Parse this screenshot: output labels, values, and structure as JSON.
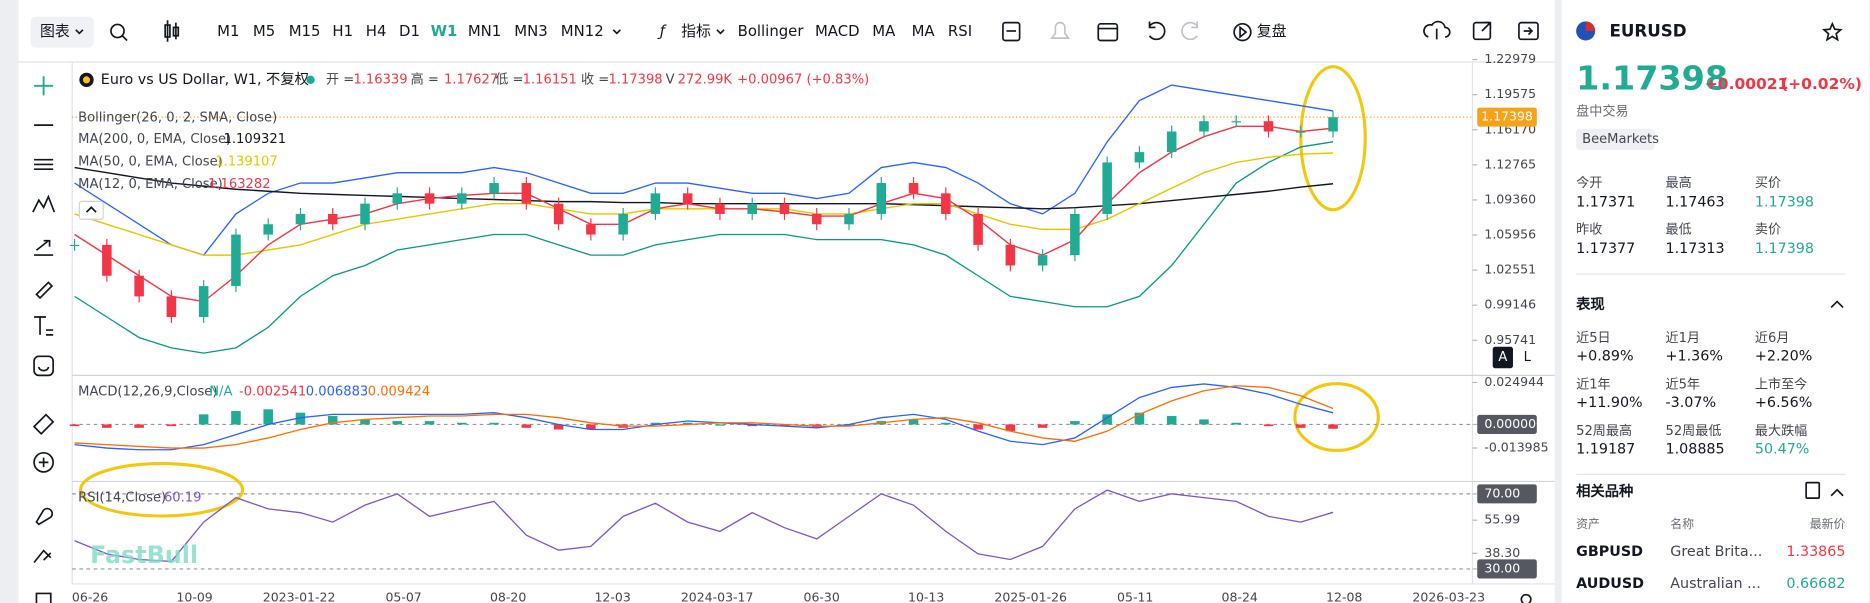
{
  "toolbar": {
    "chart_menu": "图表",
    "timeframes": [
      "M1",
      "M5",
      "M15",
      "H1",
      "H4",
      "D1",
      "W1",
      "MN1",
      "MN3",
      "MN12"
    ],
    "active_timeframe": "W1",
    "indicators_menu": "指标",
    "indicators": [
      "Bollinger",
      "MACD",
      "MA",
      "MA",
      "RSI"
    ],
    "replay": "复盘"
  },
  "legend": {
    "title": "Euro vs US Dollar, W1, 不复权",
    "ohlc": [
      {
        "label": "开 =",
        "value": "1.16339"
      },
      {
        "label": "高 =",
        "value": "1.17627"
      },
      {
        "label": "低 =",
        "value": "1.16151"
      },
      {
        "label": "收 =",
        "value": "1.17398"
      }
    ],
    "volume_label": "V",
    "volume": "272.99K",
    "change": "+0.00967 (+0.83%)"
  },
  "xtick_labels": [
    "06-26",
    "10-09",
    "2023-01-22",
    "05-07",
    "08-20",
    "12-03",
    "2024-03-17",
    "06-30",
    "10-13",
    "2025-01-26",
    "05-11",
    "08-24",
    "12-08",
    "2026-03-23"
  ],
  "scale_buttons": [
    "A",
    "L"
  ],
  "watermark": "FastBull",
  "chart_data": [
    {
      "type": "candlestick",
      "current_price": "1.17398",
      "up_color": "#22ab94",
      "down_color": "#f23645",
      "values": [
        1.05,
        1.02,
        1.0,
        0.98,
        1.01,
        1.06,
        1.07,
        1.08,
        1.07,
        1.09,
        1.1,
        1.09,
        1.1,
        1.11,
        1.09,
        1.07,
        1.06,
        1.08,
        1.1,
        1.09,
        1.08,
        1.09,
        1.08,
        1.07,
        1.08,
        1.11,
        1.1,
        1.08,
        1.05,
        1.03,
        1.04,
        1.08,
        1.13,
        1.14,
        1.16,
        1.17,
        1.17,
        1.16,
        1.16,
        1.17398
      ],
      "bollinger": {
        "name": "Bollinger(26, 0, 2, SMA, Close)",
        "upper_color": "#2962ff",
        "lower_color": "#089981",
        "upper": [
          1.11,
          1.09,
          1.07,
          1.05,
          1.04,
          1.08,
          1.1,
          1.11,
          1.11,
          1.115,
          1.12,
          1.12,
          1.12,
          1.125,
          1.12,
          1.11,
          1.1,
          1.1,
          1.11,
          1.11,
          1.105,
          1.1,
          1.1,
          1.095,
          1.1,
          1.125,
          1.13,
          1.125,
          1.11,
          1.09,
          1.08,
          1.1,
          1.15,
          1.19,
          1.205,
          1.2,
          1.195,
          1.19,
          1.185,
          1.18
        ],
        "lower": [
          1.0,
          0.98,
          0.96,
          0.95,
          0.945,
          0.95,
          0.97,
          1.0,
          1.02,
          1.03,
          1.045,
          1.05,
          1.055,
          1.06,
          1.06,
          1.05,
          1.04,
          1.04,
          1.05,
          1.055,
          1.06,
          1.06,
          1.06,
          1.055,
          1.055,
          1.055,
          1.05,
          1.04,
          1.02,
          1.0,
          0.995,
          0.99,
          0.99,
          1.0,
          1.03,
          1.07,
          1.11,
          1.13,
          1.145,
          1.15
        ]
      },
      "series": [
        {
          "name": "MA(200, 0, EMA, Close)",
          "last": "1.109321",
          "color": "#131722",
          "values": [
            1.125,
            1.12,
            1.115,
            1.11,
            1.107,
            1.104,
            1.102,
            1.1,
            1.099,
            1.098,
            1.097,
            1.096,
            1.095,
            1.094,
            1.093,
            1.092,
            1.092,
            1.091,
            1.091,
            1.09,
            1.09,
            1.09,
            1.09,
            1.09,
            1.09,
            1.09,
            1.089,
            1.088,
            1.087,
            1.086,
            1.085,
            1.086,
            1.088,
            1.09,
            1.093,
            1.096,
            1.099,
            1.102,
            1.106,
            1.109321
          ]
        },
        {
          "name": "MA(50, 0, EMA, Close)",
          "last": "1.139107",
          "color": "#e6c700",
          "values": [
            1.08,
            1.07,
            1.06,
            1.05,
            1.04,
            1.04,
            1.045,
            1.05,
            1.06,
            1.07,
            1.075,
            1.08,
            1.085,
            1.09,
            1.09,
            1.085,
            1.08,
            1.08,
            1.085,
            1.085,
            1.085,
            1.085,
            1.085,
            1.08,
            1.08,
            1.085,
            1.09,
            1.09,
            1.08,
            1.07,
            1.065,
            1.065,
            1.075,
            1.09,
            1.105,
            1.12,
            1.13,
            1.135,
            1.138,
            1.139107
          ]
        },
        {
          "name": "MA(12, 0, EMA, Close)",
          "last": "1.163282",
          "color": "#f23645",
          "values": [
            1.06,
            1.04,
            1.02,
            1.0,
            0.995,
            1.02,
            1.05,
            1.07,
            1.075,
            1.08,
            1.09,
            1.095,
            1.098,
            1.1,
            1.1,
            1.085,
            1.07,
            1.07,
            1.085,
            1.09,
            1.085,
            1.085,
            1.082,
            1.078,
            1.078,
            1.09,
            1.1,
            1.095,
            1.075,
            1.05,
            1.04,
            1.055,
            1.09,
            1.12,
            1.14,
            1.155,
            1.165,
            1.165,
            1.16,
            1.163282
          ]
        }
      ],
      "ylim": [
        0.9268,
        1.2298
      ],
      "yticks": [
        0.95741,
        0.99146,
        1.02551,
        1.05956,
        {
          "value": 1.0936,
          "label": "1.09360"
        },
        1.12765,
        {
          "value": 1.1617,
          "label": "1.16170"
        },
        1.19575,
        1.22979
      ]
    },
    {
      "type": "macd",
      "title": "MACD(12,26,9,Close)",
      "legend_values": [
        "N/A",
        "-0.002541",
        "0.006883",
        "0.009424"
      ],
      "macd_color": "#2962ff",
      "signal_color": "#ff6d00",
      "up_color": "#22ab94",
      "down_color": "#f23645",
      "histogram": [
        -0.001,
        -0.002,
        -0.002,
        -0.001,
        0.006,
        0.008,
        0.009,
        0.007,
        0.005,
        0.003,
        0.002,
        0.002,
        0.001,
        0.001,
        -0.002,
        -0.003,
        -0.003,
        -0.002,
        0.001,
        0.001,
        0.0,
        -0.001,
        -0.001,
        -0.002,
        0.0,
        0.002,
        0.003,
        0.001,
        -0.003,
        -0.004,
        -0.002,
        0.002,
        0.006,
        0.007,
        0.005,
        0.003,
        0.001,
        -0.001,
        -0.002,
        -0.002541
      ],
      "macd_line": [
        -0.012,
        -0.014,
        -0.015,
        -0.015,
        -0.012,
        -0.006,
        0.0,
        0.004,
        0.006,
        0.006,
        0.006,
        0.006,
        0.006,
        0.007,
        0.004,
        0.0,
        -0.003,
        -0.003,
        0.0,
        0.002,
        0.001,
        0.0,
        -0.001,
        -0.002,
        0.0,
        0.004,
        0.006,
        0.003,
        -0.004,
        -0.01,
        -0.012,
        -0.008,
        0.004,
        0.016,
        0.022,
        0.024,
        0.022,
        0.018,
        0.012,
        0.006883
      ],
      "signal_line": [
        -0.011,
        -0.012,
        -0.013,
        -0.014,
        -0.014,
        -0.012,
        -0.008,
        -0.003,
        0.001,
        0.003,
        0.004,
        0.005,
        0.005,
        0.006,
        0.006,
        0.004,
        0.001,
        -0.001,
        -0.001,
        0.0,
        0.001,
        0.001,
        0.0,
        -0.001,
        -0.001,
        0.001,
        0.003,
        0.004,
        0.001,
        -0.004,
        -0.008,
        -0.01,
        -0.004,
        0.006,
        0.014,
        0.02,
        0.023,
        0.022,
        0.017,
        0.009424
      ],
      "ylim": [
        -0.031,
        0.027
      ],
      "yticks": [
        0.024944,
        {
          "value": 0,
          "label": "0.000000"
        },
        -0.013985
      ],
      "bands": [
        0
      ]
    },
    {
      "type": "rsi",
      "title": "RSI(14,Close)",
      "value_label": "60.19",
      "color": "#7e57c2",
      "values": [
        45,
        38,
        35,
        34,
        55,
        68,
        62,
        60,
        55,
        64,
        70,
        58,
        62,
        66,
        48,
        40,
        42,
        58,
        65,
        55,
        50,
        60,
        52,
        46,
        58,
        70,
        64,
        50,
        38,
        35,
        42,
        62,
        72,
        66,
        70,
        68,
        66,
        58,
        55,
        60.19
      ],
      "ylim": [
        22,
        76
      ],
      "yticks": [
        {
          "value": 70,
          "label": "70.00"
        },
        55.99,
        {
          "value": 38.3,
          "label": "38.30"
        },
        {
          "value": 30,
          "label": "30.00"
        }
      ],
      "bands": [
        70,
        30
      ]
    }
  ],
  "quote": {
    "symbol": "EURUSD",
    "price": "1.17398",
    "change": "+0.00021",
    "change_pct": "(+0.02%)",
    "status": "盘中交易",
    "broker": "BeeMarkets",
    "stats": [
      {
        "label": "今开",
        "value": "1.17371"
      },
      {
        "label": "最高",
        "value": "1.17463"
      },
      {
        "label": "买价",
        "value": "1.17398"
      },
      {
        "label": "昨收",
        "value": "1.17377"
      },
      {
        "label": "最低",
        "value": "1.17313"
      },
      {
        "label": "卖价",
        "value": "1.17398"
      }
    ]
  },
  "performance": {
    "title": "表现",
    "items": [
      {
        "label": "近5日",
        "value": "+0.89%"
      },
      {
        "label": "近1月",
        "value": "+1.36%"
      },
      {
        "label": "近6月",
        "value": "+2.20%"
      },
      {
        "label": "近1年",
        "value": "+11.90%"
      },
      {
        "label": "近5年",
        "value": "-3.07%"
      },
      {
        "label": "上市至今",
        "value": "+6.56%"
      },
      {
        "label": "52周最高",
        "value": "1.19187"
      },
      {
        "label": "52周最低",
        "value": "1.08885"
      },
      {
        "label": "最大跌幅",
        "value": "50.47%"
      }
    ]
  },
  "related": {
    "title": "相关品种",
    "columns": [
      "资产",
      "名称",
      "最新价"
    ],
    "rows": [
      [
        "GBPUSD",
        "Great Brita...",
        "1.33865"
      ],
      [
        "AUDUSD",
        "Australian ...",
        "0.66682"
      ]
    ]
  }
}
